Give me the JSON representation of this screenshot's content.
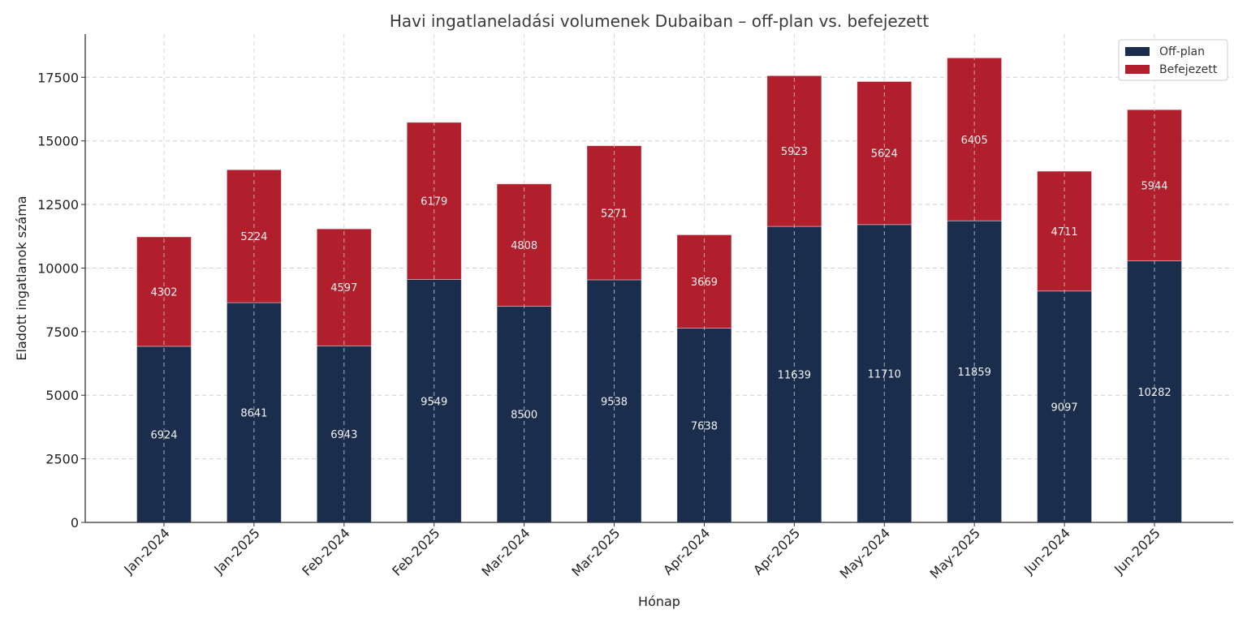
{
  "chart_data": {
    "type": "bar",
    "stacked": true,
    "title": "Havi ingatlaneladási volumenek Dubaiban – off-plan vs. befejezett",
    "xlabel": "Hónap",
    "ylabel": "Eladott ingatlanok száma",
    "ylim": [
      0,
      19200
    ],
    "yticks": [
      0,
      2500,
      5000,
      7500,
      10000,
      12500,
      15000,
      17500
    ],
    "grid": true,
    "legend_position": "top-right",
    "categories": [
      "Jan-2024",
      "Jan-2025",
      "Feb-2024",
      "Feb-2025",
      "Mar-2024",
      "Mar-2025",
      "Apr-2024",
      "Apr-2025",
      "May-2024",
      "May-2025",
      "Jun-2024",
      "Jun-2025"
    ],
    "series": [
      {
        "name": "Off-plan",
        "color": "#1b2d4c",
        "values": [
          6924,
          8641,
          6943,
          9549,
          8500,
          9538,
          7638,
          11639,
          11710,
          11859,
          9097,
          10282
        ]
      },
      {
        "name": "Befejezett",
        "color": "#b01f2b",
        "values": [
          4302,
          5224,
          4597,
          6179,
          4808,
          5271,
          3669,
          5923,
          5624,
          6405,
          4711,
          5944
        ]
      }
    ]
  }
}
